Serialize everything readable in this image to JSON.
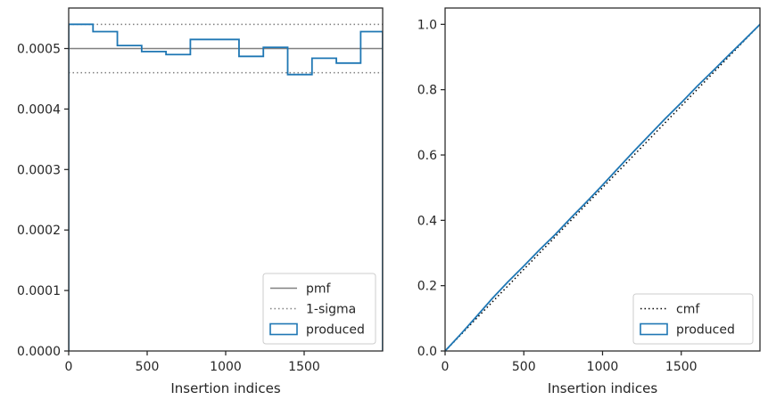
{
  "chart_data": [
    {
      "type": "histogram",
      "title": "",
      "xlabel": "Insertion indices",
      "ylabel": "",
      "xlim": [
        0,
        2000
      ],
      "ylim": [
        0,
        0.000567
      ],
      "xticks": [
        0,
        500,
        1000,
        1500
      ],
      "xtick_labels": [
        "0",
        "500",
        "1000",
        "1500"
      ],
      "yticks": [
        0,
        0.0001,
        0.0002,
        0.0003,
        0.0004,
        0.0005
      ],
      "ytick_labels": [
        "0.0000",
        "0.0001",
        "0.0002",
        "0.0003",
        "0.0004",
        "0.0005"
      ],
      "grid": false,
      "legend_placement": "lower-right",
      "reference_lines": [
        {
          "name": "pmf",
          "style": "solid",
          "color": "#808080",
          "y": 0.0005
        },
        {
          "name": "1-sigma",
          "style": "dotted",
          "color": "#808080",
          "y": [
            0.00046,
            0.00054
          ]
        }
      ],
      "series": [
        {
          "name": "produced",
          "style": "step",
          "color": "#1f77b4",
          "bin_edges": [
            0,
            155,
            310,
            465,
            620,
            775,
            930,
            1085,
            1240,
            1395,
            1550,
            1705,
            1860,
            2000
          ],
          "values": [
            0.00054,
            0.000528,
            0.000505,
            0.000495,
            0.00049,
            0.000515,
            0.000515,
            0.000487,
            0.000502,
            0.000457,
            0.000484,
            0.000476,
            0.000528
          ]
        }
      ],
      "legend": [
        "pmf",
        "1-sigma",
        "produced"
      ]
    },
    {
      "type": "line",
      "title": "",
      "xlabel": "Insertion indices",
      "ylabel": "",
      "xlim": [
        0,
        2000
      ],
      "ylim": [
        0,
        1.05
      ],
      "xticks": [
        0,
        500,
        1000,
        1500
      ],
      "xtick_labels": [
        "0",
        "500",
        "1000",
        "1500"
      ],
      "yticks": [
        0,
        0.2,
        0.4,
        0.6,
        0.8,
        1.0
      ],
      "ytick_labels": [
        "0.0",
        "0.2",
        "0.4",
        "0.6",
        "0.8",
        "1.0"
      ],
      "grid": false,
      "legend_placement": "lower-right",
      "series": [
        {
          "name": "cmf",
          "style": "dotted",
          "color": "#000000",
          "x": [
            0,
            2000
          ],
          "y": [
            0,
            1.0
          ]
        },
        {
          "name": "produced",
          "style": "solid",
          "color": "#1f77b4",
          "x": [
            0,
            100,
            200,
            300,
            400,
            500,
            600,
            700,
            800,
            900,
            1000,
            1100,
            1200,
            1300,
            1400,
            1500,
            1600,
            1700,
            1800,
            1900,
            2000
          ],
          "y": [
            0,
            0.052,
            0.106,
            0.161,
            0.212,
            0.26,
            0.31,
            0.357,
            0.408,
            0.457,
            0.508,
            0.56,
            0.612,
            0.662,
            0.712,
            0.76,
            0.81,
            0.857,
            0.905,
            0.952,
            1.0
          ]
        }
      ],
      "legend": [
        "cmf",
        "produced"
      ]
    }
  ]
}
